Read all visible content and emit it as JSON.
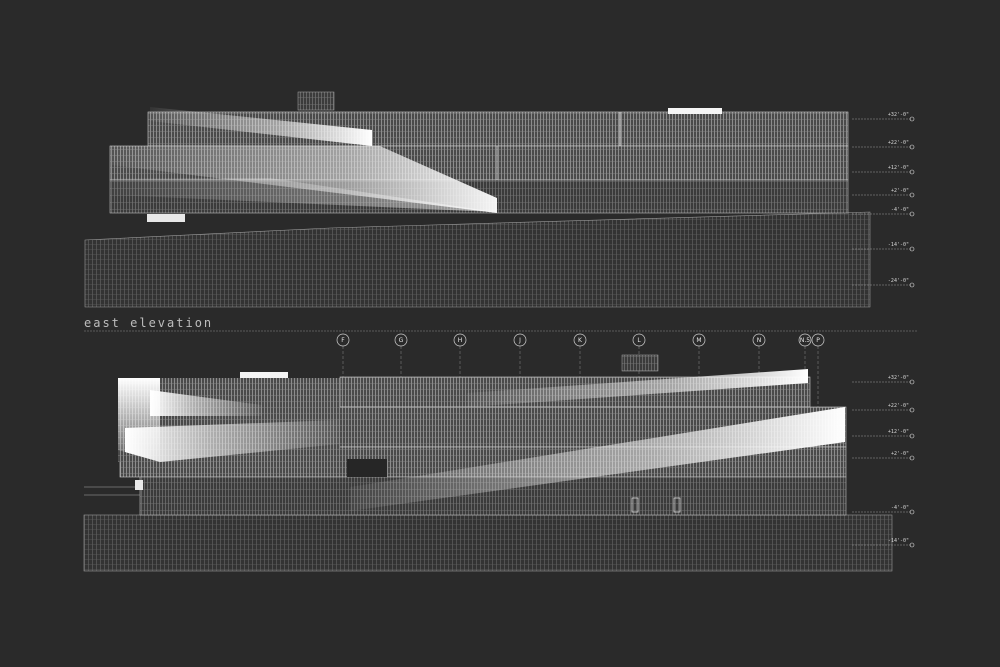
{
  "drawing": {
    "title": "east elevation",
    "grid_lines": [
      "F",
      "G",
      "H",
      "J",
      "K",
      "L",
      "M",
      "N",
      "N.5",
      "P"
    ],
    "upper_levels": [
      "+32'-0\"",
      "+22'-0\"",
      "+12'-0\"",
      "+2'-0\"",
      "-4'-0\"",
      "-14'-0\"",
      "-24'-0\""
    ],
    "lower_levels": [
      "+32'-0\"",
      "+22'-0\"",
      "+12'-0\"",
      "+2'-0\"",
      "-4'-0\"",
      "-14'-0\""
    ]
  },
  "colors": {
    "background": "#2a2a2a",
    "linework": "#d9d9d9",
    "highlight": "#ffffff"
  }
}
